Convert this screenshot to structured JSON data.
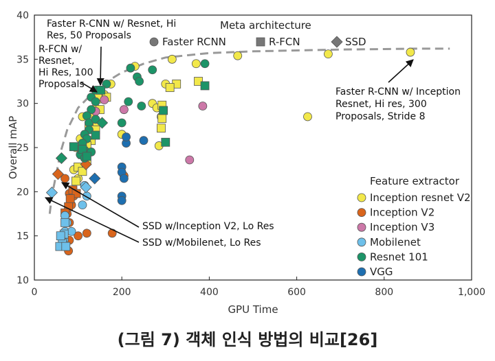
{
  "caption": "(그림 7) 객체 인식 방법의 비교[26]",
  "chart_data": {
    "type": "scatter",
    "xlabel": "GPU Time",
    "ylabel": "Overall mAP",
    "xlim": [
      0,
      1000
    ],
    "ylim": [
      10,
      40
    ],
    "xticks": [
      "0",
      "200",
      "400",
      "600",
      "800",
      "1,000"
    ],
    "yticks": [
      "10",
      "15",
      "20",
      "25",
      "30",
      "35",
      "40"
    ],
    "meta_title": "Meta architecture",
    "meta_legend": [
      {
        "name": "Faster RCNN",
        "shape": "circle"
      },
      {
        "name": "R-FCN",
        "shape": "square"
      },
      {
        "name": "SSD",
        "shape": "diamond"
      }
    ],
    "feature_title": "Feature extractor",
    "feature_legend": [
      {
        "name": "Inception resnet V2",
        "color": "#f2e84a"
      },
      {
        "name": "Inception V2",
        "color": "#d9651c"
      },
      {
        "name": "Inception V3",
        "color": "#cc78a8"
      },
      {
        "name": "Mobilenet",
        "color": "#6ec0ea"
      },
      {
        "name": "Resnet 101",
        "color": "#1c9468"
      },
      {
        "name": "VGG",
        "color": "#1e6fb0"
      }
    ],
    "frontier": [
      [
        35,
        17.5
      ],
      [
        40,
        19.5
      ],
      [
        50,
        22
      ],
      [
        60,
        24.5
      ],
      [
        75,
        27
      ],
      [
        100,
        29.5
      ],
      [
        130,
        31
      ],
      [
        160,
        32.3
      ],
      [
        200,
        33.5
      ],
      [
        250,
        34.5
      ],
      [
        300,
        35.2
      ],
      [
        400,
        35.7
      ],
      [
        500,
        35.9
      ],
      [
        600,
        36
      ],
      [
        700,
        36.1
      ],
      [
        800,
        36.15
      ],
      [
        870,
        36.2
      ],
      [
        950,
        36.2
      ]
    ],
    "points": [
      {
        "x": 860,
        "y": 35.8,
        "s": "circle",
        "c": 0
      },
      {
        "x": 672,
        "y": 35.6,
        "s": "circle",
        "c": 0
      },
      {
        "x": 465,
        "y": 35.4,
        "s": "circle",
        "c": 0
      },
      {
        "x": 625,
        "y": 28.5,
        "s": "circle",
        "c": 0
      },
      {
        "x": 370,
        "y": 34.5,
        "s": "circle",
        "c": 0
      },
      {
        "x": 315,
        "y": 35,
        "s": "circle",
        "c": 0
      },
      {
        "x": 230,
        "y": 34.2,
        "s": "circle",
        "c": 0
      },
      {
        "x": 175,
        "y": 32.2,
        "s": "circle",
        "c": 0
      },
      {
        "x": 300,
        "y": 32.2,
        "s": "circle",
        "c": 0
      },
      {
        "x": 270,
        "y": 30,
        "s": "circle",
        "c": 0
      },
      {
        "x": 280,
        "y": 29.5,
        "s": "circle",
        "c": 0
      },
      {
        "x": 290,
        "y": 28.5,
        "s": "circle",
        "c": 0
      },
      {
        "x": 285,
        "y": 25.2,
        "s": "circle",
        "c": 0
      },
      {
        "x": 200,
        "y": 26.5,
        "s": "circle",
        "c": 0
      },
      {
        "x": 160,
        "y": 31,
        "s": "circle",
        "c": 0
      },
      {
        "x": 150,
        "y": 30.5,
        "s": "circle",
        "c": 0
      },
      {
        "x": 140,
        "y": 29.5,
        "s": "circle",
        "c": 0
      },
      {
        "x": 110,
        "y": 28.5,
        "s": "circle",
        "c": 0
      },
      {
        "x": 105,
        "y": 26,
        "s": "circle",
        "c": 0
      },
      {
        "x": 95,
        "y": 25,
        "s": "circle",
        "c": 0
      },
      {
        "x": 90,
        "y": 22.5,
        "s": "circle",
        "c": 0
      },
      {
        "x": 100,
        "y": 21.5,
        "s": "circle",
        "c": 0
      },
      {
        "x": 140,
        "y": 27.5,
        "s": "circle",
        "c": 0
      },
      {
        "x": 145,
        "y": 30.8,
        "s": "square",
        "c": 0
      },
      {
        "x": 165,
        "y": 30.7,
        "s": "square",
        "c": 0
      },
      {
        "x": 150,
        "y": 29.3,
        "s": "square",
        "c": 0
      },
      {
        "x": 135,
        "y": 28.8,
        "s": "square",
        "c": 0
      },
      {
        "x": 125,
        "y": 27.5,
        "s": "square",
        "c": 0
      },
      {
        "x": 140,
        "y": 27,
        "s": "square",
        "c": 0
      },
      {
        "x": 130,
        "y": 25.8,
        "s": "square",
        "c": 0
      },
      {
        "x": 120,
        "y": 25.2,
        "s": "square",
        "c": 0
      },
      {
        "x": 110,
        "y": 24.2,
        "s": "square",
        "c": 0
      },
      {
        "x": 120,
        "y": 23.5,
        "s": "square",
        "c": 0
      },
      {
        "x": 100,
        "y": 22.8,
        "s": "square",
        "c": 0
      },
      {
        "x": 110,
        "y": 22.3,
        "s": "square",
        "c": 0
      },
      {
        "x": 95,
        "y": 21.2,
        "s": "square",
        "c": 0
      },
      {
        "x": 375,
        "y": 32.5,
        "s": "square",
        "c": 0
      },
      {
        "x": 325,
        "y": 32.2,
        "s": "square",
        "c": 0
      },
      {
        "x": 310,
        "y": 31.8,
        "s": "square",
        "c": 0
      },
      {
        "x": 292,
        "y": 29.8,
        "s": "square",
        "c": 0
      },
      {
        "x": 292,
        "y": 28.3,
        "s": "square",
        "c": 0
      },
      {
        "x": 290,
        "y": 27.2,
        "s": "square",
        "c": 0
      },
      {
        "x": 70,
        "y": 21.5,
        "s": "circle",
        "c": 1
      },
      {
        "x": 80,
        "y": 19.8,
        "s": "circle",
        "c": 1
      },
      {
        "x": 90,
        "y": 19.5,
        "s": "circle",
        "c": 1
      },
      {
        "x": 85,
        "y": 18.5,
        "s": "circle",
        "c": 1
      },
      {
        "x": 75,
        "y": 17.5,
        "s": "circle",
        "c": 1
      },
      {
        "x": 80,
        "y": 16.5,
        "s": "circle",
        "c": 1
      },
      {
        "x": 70,
        "y": 15.5,
        "s": "circle",
        "c": 1
      },
      {
        "x": 80,
        "y": 14.5,
        "s": "circle",
        "c": 1
      },
      {
        "x": 100,
        "y": 15,
        "s": "circle",
        "c": 1
      },
      {
        "x": 120,
        "y": 15.3,
        "s": "circle",
        "c": 1
      },
      {
        "x": 178,
        "y": 15.3,
        "s": "circle",
        "c": 1
      },
      {
        "x": 78,
        "y": 13.3,
        "s": "circle",
        "c": 1
      },
      {
        "x": 205,
        "y": 21.8,
        "s": "circle",
        "c": 1
      },
      {
        "x": 88,
        "y": 20.2,
        "s": "square",
        "c": 1
      },
      {
        "x": 96,
        "y": 19.8,
        "s": "square",
        "c": 1
      },
      {
        "x": 82,
        "y": 19.2,
        "s": "square",
        "c": 1
      },
      {
        "x": 78,
        "y": 18.3,
        "s": "square",
        "c": 1
      },
      {
        "x": 70,
        "y": 17.6,
        "s": "square",
        "c": 1
      },
      {
        "x": 54,
        "y": 22,
        "s": "diamond",
        "c": 1
      },
      {
        "x": 118,
        "y": 23.1,
        "s": "diamond",
        "c": 1
      },
      {
        "x": 205,
        "y": 29.3,
        "s": "circle",
        "c": 2
      },
      {
        "x": 385,
        "y": 29.7,
        "s": "circle",
        "c": 2
      },
      {
        "x": 355,
        "y": 23.6,
        "s": "circle",
        "c": 2
      },
      {
        "x": 160,
        "y": 30.4,
        "s": "circle",
        "c": 2
      },
      {
        "x": 140,
        "y": 29.1,
        "s": "circle",
        "c": 2
      },
      {
        "x": 115,
        "y": 20.7,
        "s": "circle",
        "c": 3
      },
      {
        "x": 120,
        "y": 19.5,
        "s": "circle",
        "c": 3
      },
      {
        "x": 110,
        "y": 18.5,
        "s": "circle",
        "c": 3
      },
      {
        "x": 70,
        "y": 17.3,
        "s": "circle",
        "c": 3
      },
      {
        "x": 75,
        "y": 16.5,
        "s": "circle",
        "c": 3
      },
      {
        "x": 70,
        "y": 15.5,
        "s": "circle",
        "c": 3
      },
      {
        "x": 68,
        "y": 14.5,
        "s": "circle",
        "c": 3
      },
      {
        "x": 65,
        "y": 14.3,
        "s": "circle",
        "c": 3
      },
      {
        "x": 85,
        "y": 15.5,
        "s": "circle",
        "c": 3
      },
      {
        "x": 70,
        "y": 16.5,
        "s": "square",
        "c": 3
      },
      {
        "x": 68,
        "y": 15.2,
        "s": "square",
        "c": 3
      },
      {
        "x": 64,
        "y": 14.2,
        "s": "square",
        "c": 3
      },
      {
        "x": 58,
        "y": 13.8,
        "s": "square",
        "c": 3
      },
      {
        "x": 72,
        "y": 13.8,
        "s": "square",
        "c": 3
      },
      {
        "x": 60,
        "y": 15,
        "s": "square",
        "c": 3
      },
      {
        "x": 40,
        "y": 19.9,
        "s": "diamond",
        "c": 3
      },
      {
        "x": 118,
        "y": 20.5,
        "s": "diamond",
        "c": 3
      },
      {
        "x": 220,
        "y": 34,
        "s": "circle",
        "c": 4
      },
      {
        "x": 270,
        "y": 33.8,
        "s": "circle",
        "c": 4
      },
      {
        "x": 235,
        "y": 33,
        "s": "circle",
        "c": 4
      },
      {
        "x": 240,
        "y": 32.5,
        "s": "circle",
        "c": 4
      },
      {
        "x": 215,
        "y": 30.2,
        "s": "circle",
        "c": 4
      },
      {
        "x": 245,
        "y": 29.7,
        "s": "circle",
        "c": 4
      },
      {
        "x": 200,
        "y": 27.8,
        "s": "circle",
        "c": 4
      },
      {
        "x": 165,
        "y": 32.2,
        "s": "circle",
        "c": 4
      },
      {
        "x": 140,
        "y": 31.5,
        "s": "circle",
        "c": 4
      },
      {
        "x": 130,
        "y": 30.7,
        "s": "circle",
        "c": 4
      },
      {
        "x": 140,
        "y": 30.2,
        "s": "circle",
        "c": 4
      },
      {
        "x": 130,
        "y": 29.3,
        "s": "circle",
        "c": 4
      },
      {
        "x": 120,
        "y": 28.6,
        "s": "circle",
        "c": 4
      },
      {
        "x": 125,
        "y": 27.8,
        "s": "circle",
        "c": 4
      },
      {
        "x": 140,
        "y": 28.2,
        "s": "circle",
        "c": 4
      },
      {
        "x": 125,
        "y": 27,
        "s": "circle",
        "c": 4
      },
      {
        "x": 115,
        "y": 26.5,
        "s": "circle",
        "c": 4
      },
      {
        "x": 120,
        "y": 26,
        "s": "circle",
        "c": 4
      },
      {
        "x": 110,
        "y": 25.5,
        "s": "circle",
        "c": 4
      },
      {
        "x": 115,
        "y": 24.7,
        "s": "circle",
        "c": 4
      },
      {
        "x": 105,
        "y": 24.2,
        "s": "circle",
        "c": 4
      },
      {
        "x": 115,
        "y": 23.8,
        "s": "circle",
        "c": 4
      },
      {
        "x": 130,
        "y": 24.5,
        "s": "circle",
        "c": 4
      },
      {
        "x": 390,
        "y": 34.5,
        "s": "circle",
        "c": 4
      },
      {
        "x": 390,
        "y": 32,
        "s": "square",
        "c": 4
      },
      {
        "x": 295,
        "y": 29.2,
        "s": "square",
        "c": 4
      },
      {
        "x": 300,
        "y": 25.6,
        "s": "square",
        "c": 4
      },
      {
        "x": 110,
        "y": 24.8,
        "s": "square",
        "c": 4
      },
      {
        "x": 120,
        "y": 24,
        "s": "square",
        "c": 4
      },
      {
        "x": 140,
        "y": 26.4,
        "s": "square",
        "c": 4
      },
      {
        "x": 90,
        "y": 25.1,
        "s": "square",
        "c": 4
      },
      {
        "x": 152,
        "y": 31.5,
        "s": "square",
        "c": 4
      },
      {
        "x": 62,
        "y": 23.8,
        "s": "diamond",
        "c": 4
      },
      {
        "x": 155,
        "y": 27.8,
        "s": "diamond",
        "c": 4
      },
      {
        "x": 200,
        "y": 22.8,
        "s": "circle",
        "c": 5
      },
      {
        "x": 210,
        "y": 25.5,
        "s": "circle",
        "c": 5
      },
      {
        "x": 250,
        "y": 25.8,
        "s": "circle",
        "c": 5
      },
      {
        "x": 200,
        "y": 22.2,
        "s": "circle",
        "c": 5
      },
      {
        "x": 205,
        "y": 21.5,
        "s": "circle",
        "c": 5
      },
      {
        "x": 200,
        "y": 19.5,
        "s": "circle",
        "c": 5
      },
      {
        "x": 200,
        "y": 19,
        "s": "circle",
        "c": 5
      },
      {
        "x": 210,
        "y": 26.2,
        "s": "circle",
        "c": 5
      },
      {
        "x": 138,
        "y": 21.5,
        "s": "diamond",
        "c": 5
      }
    ],
    "annotations": [
      {
        "text": [
          "Faster R-CNN w/ Resnet, Hi",
          "Res, 50 Proposals"
        ]
      },
      {
        "text": [
          "R-FCN w/",
          "Resnet,",
          "Hi Res, 100",
          "Proposals"
        ]
      },
      {
        "text": [
          "Faster R-CNN w/ Inception",
          "Resnet, Hi res, 300",
          "Proposals, Stride 8"
        ]
      },
      {
        "text": [
          "SSD w/Inception V2, Lo Res"
        ]
      },
      {
        "text": [
          "SSD w/Mobilenet, Lo Res"
        ]
      }
    ]
  }
}
